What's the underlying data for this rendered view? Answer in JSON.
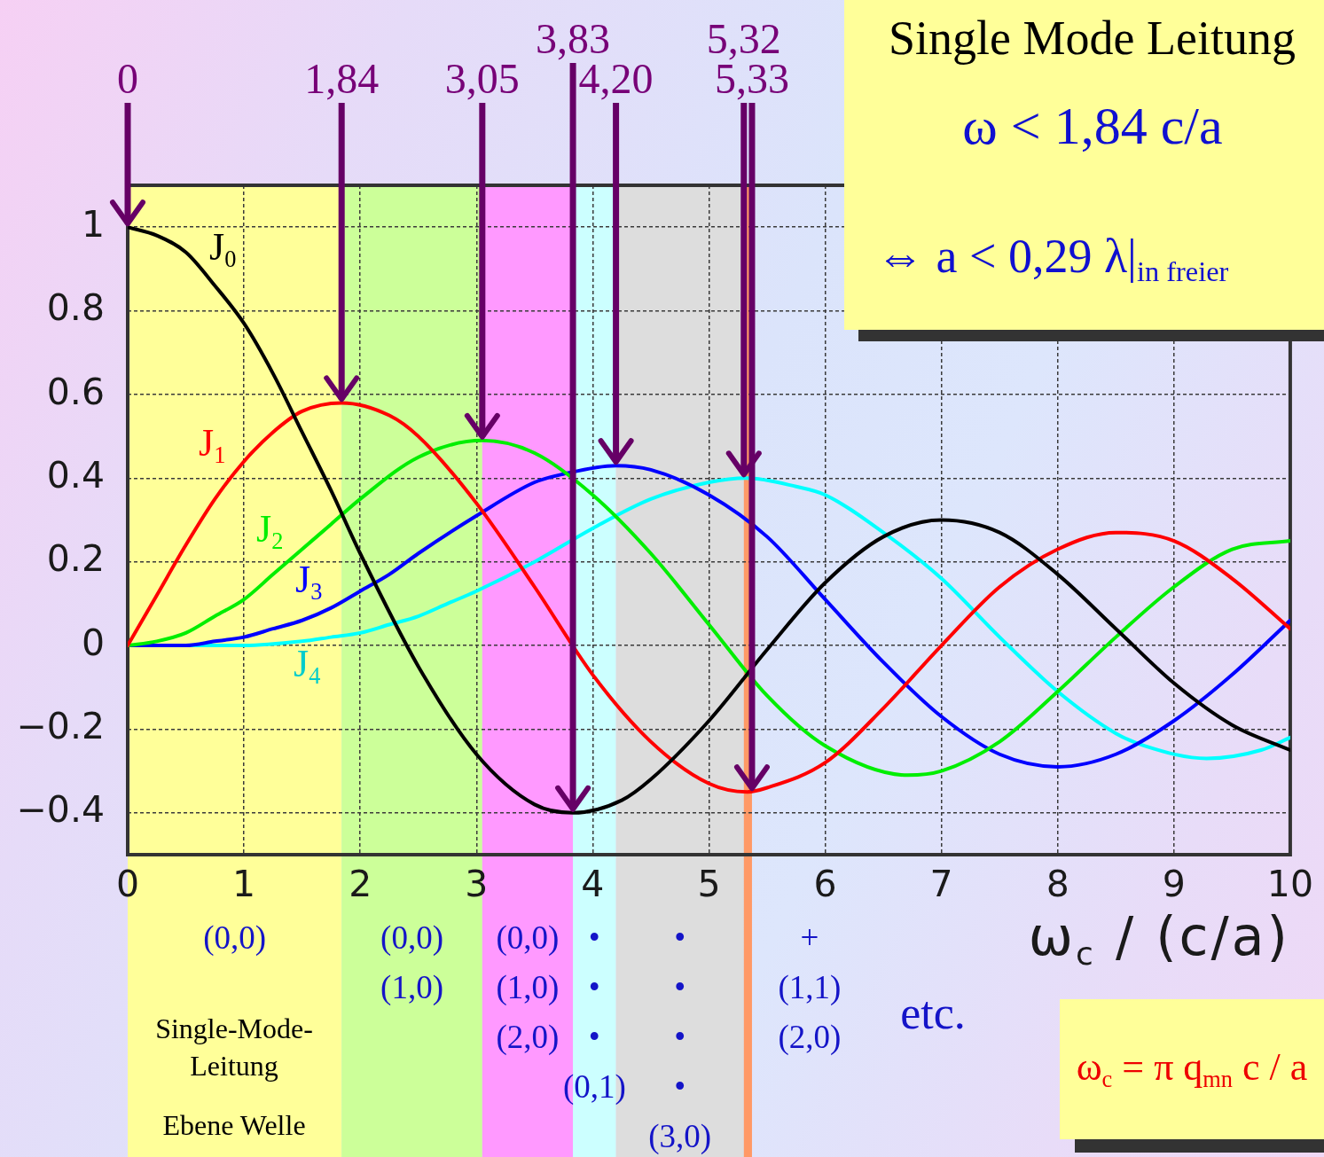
{
  "chart_data": {
    "type": "line",
    "title": "Single Mode Leitung",
    "xlabel": "ω$_{c}$ / (c/a)",
    "xlim": [
      0,
      10
    ],
    "xticks": [
      0,
      1,
      2,
      3,
      4,
      5,
      6,
      7,
      8,
      9,
      10
    ],
    "ylim": [
      -0.5,
      1.1
    ],
    "yticks": [
      {
        "value": -0.4,
        "label": "−0.4"
      },
      {
        "value": -0.2,
        "label": "−0.2"
      },
      0,
      0.2,
      0.4,
      0.6,
      0.8,
      1
    ],
    "grid": true,
    "legend": false,
    "marker": "none",
    "line_style": "solid",
    "series": [
      {
        "name": "J$_{0}$",
        "color": "#000000",
        "x": [
          0,
          0.25,
          0.5,
          0.75,
          1,
          1.25,
          1.5,
          1.75,
          2,
          2.5,
          3,
          3.5,
          3.83,
          4.25,
          4.5,
          5,
          5.5,
          6,
          6.5,
          7,
          7.5,
          8,
          8.5,
          9,
          9.5,
          10
        ],
        "values": [
          1,
          0.98,
          0.94,
          0.86,
          0.77,
          0.65,
          0.51,
          0.37,
          0.22,
          -0.05,
          -0.26,
          -0.38,
          -0.4,
          -0.37,
          -0.32,
          -0.18,
          -0.01,
          0.15,
          0.26,
          0.3,
          0.27,
          0.17,
          0.04,
          -0.09,
          -0.19,
          -0.25
        ]
      },
      {
        "name": "J$_{1}$",
        "color": "#ff0000",
        "x": [
          0,
          0.25,
          0.5,
          0.75,
          1,
          1.25,
          1.5,
          1.84,
          2.25,
          2.5,
          3,
          3.5,
          4,
          4.5,
          5,
          5.33,
          5.5,
          6,
          6.5,
          7,
          7.5,
          8,
          8.5,
          9,
          9.5,
          10
        ],
        "values": [
          0,
          0.12,
          0.24,
          0.35,
          0.44,
          0.51,
          0.56,
          0.58,
          0.55,
          0.5,
          0.34,
          0.14,
          -0.07,
          -0.23,
          -0.33,
          -0.35,
          -0.34,
          -0.28,
          -0.15,
          0,
          0.14,
          0.23,
          0.27,
          0.25,
          0.16,
          0.04
        ]
      },
      {
        "name": "J$_{2}$",
        "color": "#00ee00",
        "x": [
          0,
          0.25,
          0.5,
          0.75,
          1,
          1.25,
          1.5,
          1.75,
          2,
          2.5,
          3.05,
          3.5,
          4,
          4.5,
          5,
          5.5,
          6,
          6.71,
          7,
          7.5,
          8,
          8.5,
          9,
          9.5,
          10
        ],
        "values": [
          0,
          0.01,
          0.03,
          0.07,
          0.11,
          0.17,
          0.23,
          0.29,
          0.35,
          0.45,
          0.49,
          0.46,
          0.36,
          0.22,
          0.05,
          -0.12,
          -0.24,
          -0.31,
          -0.3,
          -0.23,
          -0.11,
          0.02,
          0.14,
          0.23,
          0.25
        ]
      },
      {
        "name": "J$_{3}$",
        "color": "#0000ff",
        "x": [
          0,
          0.5,
          0.75,
          1,
          1.25,
          1.5,
          1.75,
          2,
          2.25,
          2.5,
          3,
          3.5,
          3.75,
          4.2,
          4.5,
          5,
          5.5,
          6,
          6.5,
          7,
          7.5,
          8,
          8.5,
          9,
          9.5,
          10
        ],
        "values": [
          0,
          0,
          0.01,
          0.02,
          0.04,
          0.06,
          0.09,
          0.13,
          0.17,
          0.22,
          0.31,
          0.39,
          0.41,
          0.43,
          0.42,
          0.36,
          0.26,
          0.11,
          -0.04,
          -0.17,
          -0.26,
          -0.29,
          -0.26,
          -0.18,
          -0.07,
          0.06
        ]
      },
      {
        "name": "J$_{4}$",
        "color": "#00ffff",
        "x": [
          0,
          1,
          1.5,
          1.75,
          2,
          2.25,
          2.5,
          2.75,
          3,
          3.5,
          4,
          4.5,
          5,
          5.32,
          5.75,
          6,
          6.5,
          7,
          7.5,
          8,
          8.5,
          8.75,
          9.28,
          9.75,
          10
        ],
        "values": [
          0,
          0,
          0.01,
          0.02,
          0.03,
          0.05,
          0.07,
          0.1,
          0.13,
          0.2,
          0.28,
          0.35,
          0.39,
          0.4,
          0.38,
          0.36,
          0.27,
          0.16,
          0.02,
          -0.11,
          -0.21,
          -0.24,
          -0.27,
          -0.25,
          -0.22
        ]
      }
    ],
    "bands": [
      {
        "axis": "x",
        "from": 0,
        "to": 1.84,
        "color": "#ffff99",
        "label": "(0,0)"
      },
      {
        "axis": "x",
        "from": 1.84,
        "to": 3.05,
        "color": "#ccff99",
        "label": "(0,0)\n(1,0)"
      },
      {
        "axis": "x",
        "from": 3.05,
        "to": 3.83,
        "color": "#ff99ff",
        "label": "(0,0)\n(1,0)\n(2,0)"
      },
      {
        "axis": "x",
        "from": 3.83,
        "to": 4.2,
        "color": "#ccffff",
        "label": "•\n•\n•\n(0,1)"
      },
      {
        "axis": "x",
        "from": 4.2,
        "to": 5.3,
        "color": "#dddddd",
        "label": "•\n•\n•\n•\n(3,0)"
      },
      {
        "axis": "x",
        "from": 5.3,
        "to": 5.37,
        "color": "#ff9966"
      }
    ],
    "annotations": [
      {
        "text": "0",
        "x": 0,
        "y": 1
      },
      {
        "text": "1,84",
        "x": 1.84,
        "y": 0.58
      },
      {
        "text": "3,05",
        "x": 3.05,
        "y": 0.49
      },
      {
        "text": "3,83",
        "x": 3.83,
        "y": -0.4
      },
      {
        "text": "4,20",
        "x": 4.2,
        "y": 0.43
      },
      {
        "text": "5,32",
        "x": 5.3,
        "y": 0.4
      },
      {
        "text": "5,33",
        "x": 5.37,
        "y": -0.35
      },
      "+\n(1,1)\n(2,0)",
      "etc.",
      "Single-Mode-\nLeitung",
      "Ebene Welle",
      "ω < 1,84 c/a",
      "⇔ a < 0,29 λ|$_{in freier}$",
      "ω$_{c}$ = π q$_{mn}$ c / a"
    ]
  }
}
